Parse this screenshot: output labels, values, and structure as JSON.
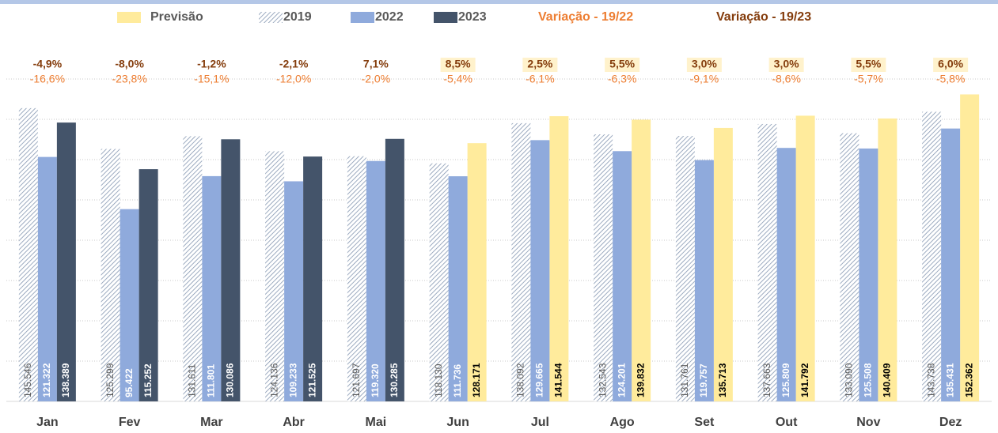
{
  "chart_data": {
    "type": "bar",
    "categories": [
      "Jan",
      "Fev",
      "Mar",
      "Abr",
      "Mai",
      "Jun",
      "Jul",
      "Ago",
      "Set",
      "Out",
      "Nov",
      "Dez"
    ],
    "series": [
      {
        "name": "Previsão",
        "color": "#ffeb9c",
        "values": [
          null,
          null,
          null,
          null,
          null,
          128171,
          141544,
          139832,
          135713,
          141792,
          140409,
          152362
        ],
        "value_labels": [
          null,
          null,
          null,
          null,
          null,
          "128.171",
          "141.544",
          "139.832",
          "135.713",
          "141.792",
          "140.409",
          "152.362"
        ]
      },
      {
        "name": "2019",
        "color": "#8496b0",
        "pattern": "hatch",
        "values": [
          145546,
          125299,
          131611,
          124136,
          121697,
          118130,
          138092,
          132543,
          131761,
          137663,
          133090,
          143738
        ],
        "value_labels": [
          "145.546",
          "125.299",
          "131.611",
          "124.136",
          "121.697",
          "118.130",
          "138.092",
          "132.543",
          "131.761",
          "137.663",
          "133.090",
          "143.738"
        ]
      },
      {
        "name": "2022",
        "color": "#8faadc",
        "values": [
          121322,
          95422,
          111801,
          109233,
          119320,
          111736,
          129665,
          124201,
          119757,
          125809,
          125508,
          135431
        ],
        "value_labels": [
          "121.322",
          "95.422",
          "111.801",
          "109.233",
          "119.320",
          "111.736",
          "129.665",
          "124.201",
          "119.757",
          "125.809",
          "125.508",
          "135.431"
        ]
      },
      {
        "name": "2023",
        "color": "#44546a",
        "values": [
          138389,
          115252,
          130086,
          121525,
          130285,
          null,
          null,
          null,
          null,
          null,
          null,
          null
        ],
        "value_labels": [
          "138.389",
          "115.252",
          "130.086",
          "121.525",
          "130.285",
          null,
          null,
          null,
          null,
          null,
          null,
          null
        ]
      }
    ],
    "variation_series": [
      {
        "name": "Variação - 19/22",
        "color": "#ed7d31",
        "values": [
          -16.6,
          -23.8,
          -15.1,
          -12.0,
          -2.0,
          -5.4,
          -6.1,
          -6.3,
          -9.1,
          -8.6,
          -5.7,
          -5.8
        ],
        "value_labels": [
          "-16,6%",
          "-23,8%",
          "-15,1%",
          "-12,0%",
          "-2,0%",
          "-5,4%",
          "-6,1%",
          "-6,3%",
          "-9,1%",
          "-8,6%",
          "-5,7%",
          "-5,8%"
        ]
      },
      {
        "name": "Variação - 19/23",
        "color": "#843c0c",
        "values": [
          -4.9,
          -8.0,
          -1.2,
          -2.1,
          7.1,
          8.5,
          2.5,
          5.5,
          3.0,
          3.0,
          5.5,
          6.0
        ],
        "value_labels": [
          "-4,9%",
          "-8,0%",
          "-1,2%",
          "-2,1%",
          "7,1%",
          "8,5%",
          "2,5%",
          "5,5%",
          "3,0%",
          "3,0%",
          "5,5%",
          "6,0%"
        ]
      }
    ],
    "ylim": [
      0,
      160000
    ],
    "yticks": [
      0,
      20000,
      40000,
      60000,
      80000,
      100000,
      120000,
      140000,
      160000
    ],
    "grid": true
  }
}
